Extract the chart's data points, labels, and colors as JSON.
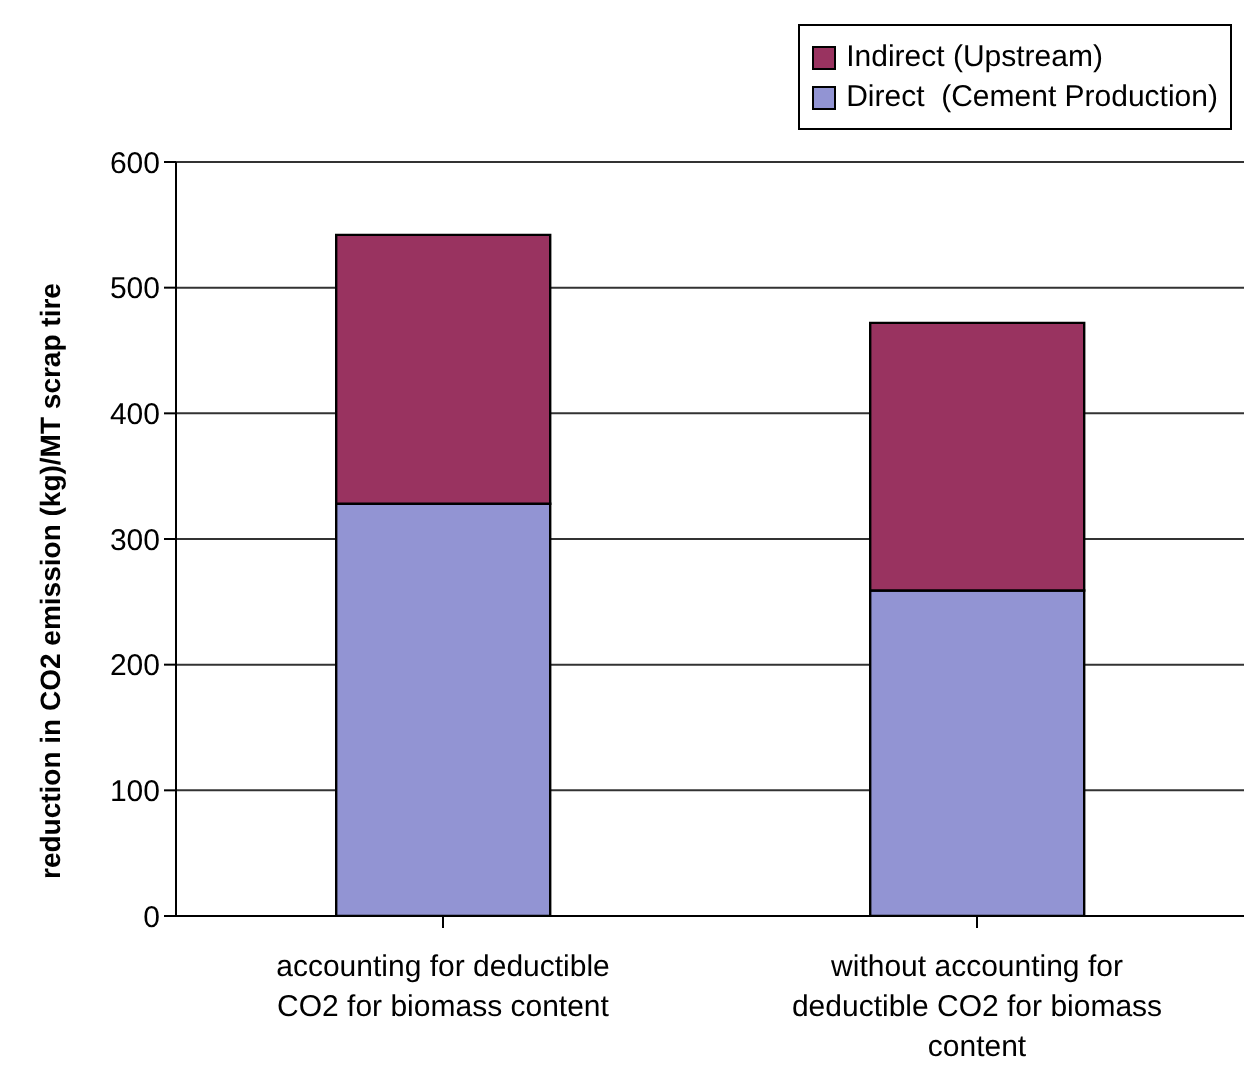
{
  "chart_data": {
    "type": "bar",
    "stacked": true,
    "ylabel": "reduction in CO2 emission (kg)/MT scrap tire",
    "categories": [
      "accounting for deductible CO2 for biomass content",
      "without accounting for deductible CO2 for biomass content"
    ],
    "series": [
      {
        "name": "Direct  (Cement Production)",
        "color": "#9294d3",
        "values": [
          328,
          259
        ]
      },
      {
        "name": "Indirect (Upstream)",
        "color": "#993360",
        "values": [
          214,
          213
        ]
      }
    ],
    "ylim": [
      0,
      600
    ],
    "yticks": [
      0,
      100,
      200,
      300,
      400,
      500,
      600
    ],
    "grid": "y",
    "legend": "top right"
  }
}
